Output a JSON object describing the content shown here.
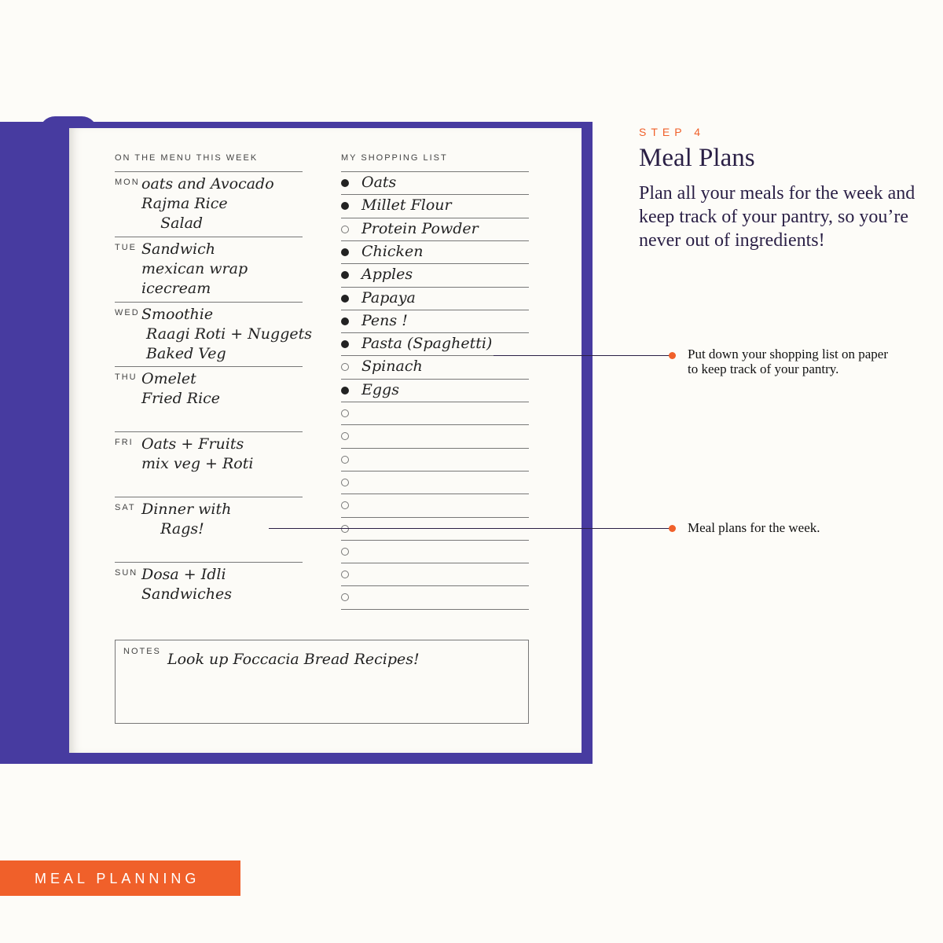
{
  "menu": {
    "heading": "ON THE MENU THIS WEEK",
    "days": [
      {
        "day": "MON",
        "text": "oats and Avocado\nRajma Rice\n    Salad"
      },
      {
        "day": "TUE",
        "text": "Sandwich\nmexican wrap\nicecream"
      },
      {
        "day": "WED",
        "text": "Smoothie\n Raagi Roti + Nuggets\n Baked Veg"
      },
      {
        "day": "THU",
        "text": "Omelet\nFried Rice"
      },
      {
        "day": "FRI",
        "text": "Oats + Fruits\nmix veg + Roti"
      },
      {
        "day": "SAT",
        "text": "Dinner with\n    Rags!"
      },
      {
        "day": "SUN",
        "text": "Dosa + Idli\nSandwiches"
      }
    ]
  },
  "shopping": {
    "heading": "MY SHOPPING LIST",
    "items": [
      {
        "text": "Oats",
        "checked": true
      },
      {
        "text": "Millet Flour",
        "checked": true
      },
      {
        "text": "Protein Powder",
        "checked": false
      },
      {
        "text": "Chicken",
        "checked": true
      },
      {
        "text": "Apples",
        "checked": true
      },
      {
        "text": "Papaya",
        "checked": true
      },
      {
        "text": "Pens !",
        "checked": true
      },
      {
        "text": "Pasta (Spaghetti)",
        "checked": true
      },
      {
        "text": "Spinach",
        "checked": false
      },
      {
        "text": "Eggs",
        "checked": true
      },
      {
        "text": "",
        "checked": false
      },
      {
        "text": "",
        "checked": false
      },
      {
        "text": "",
        "checked": false
      },
      {
        "text": "",
        "checked": false
      },
      {
        "text": "",
        "checked": false
      },
      {
        "text": "",
        "checked": false
      },
      {
        "text": "",
        "checked": false
      },
      {
        "text": "",
        "checked": false
      },
      {
        "text": "",
        "checked": false
      }
    ]
  },
  "notes": {
    "label": "NOTES",
    "text": "Look up Foccacia Bread Recipes!"
  },
  "info": {
    "step": "STEP 4",
    "title": "Meal Plans",
    "description": "Plan all your meals for the week and keep track of your pantry, so you’re never out of ingredients!"
  },
  "callouts": [
    "Put down your shopping list on paper to keep track of your pantry.",
    "Meal plans for the week."
  ],
  "badge": "MEAL PLANNING",
  "colors": {
    "cover": "#473ba0",
    "accent": "#f0602a",
    "text": "#2a1f45"
  }
}
